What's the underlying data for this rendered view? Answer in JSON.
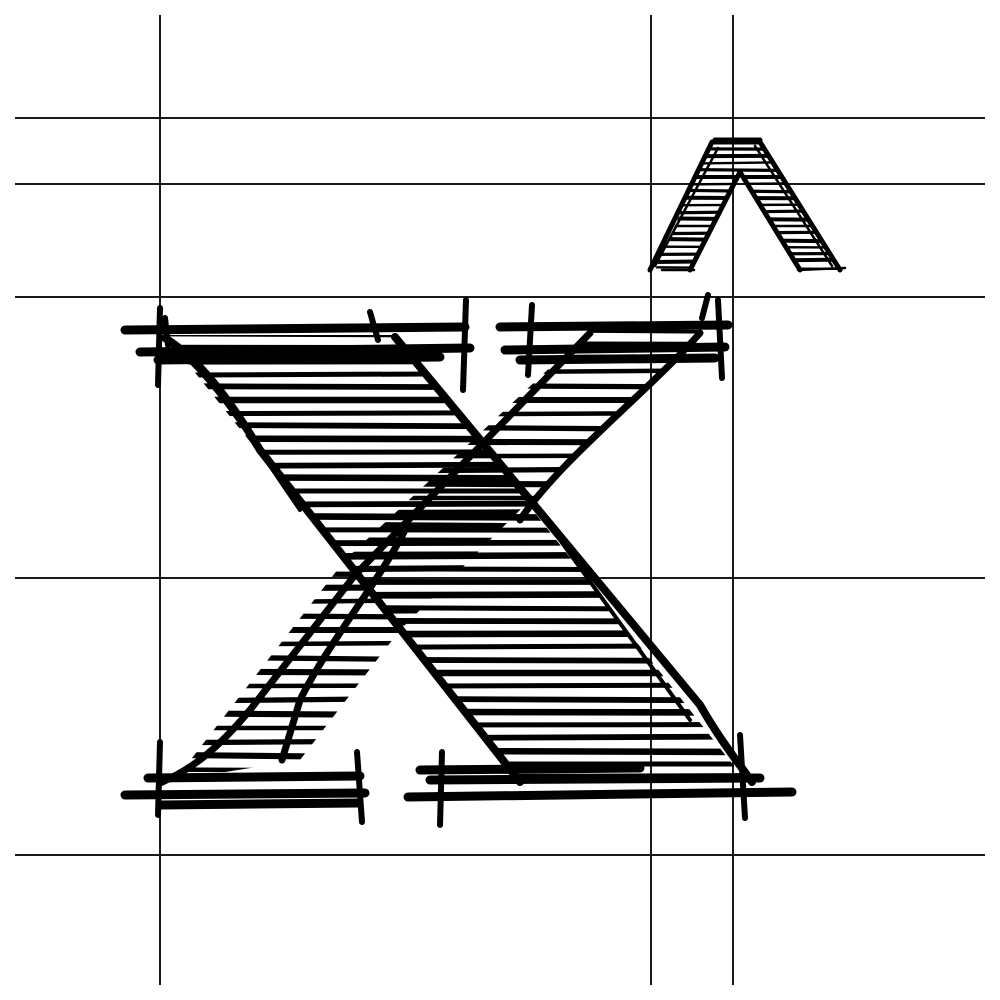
{
  "drawing": {
    "subject": "x-hat-sketch",
    "glyph": "x",
    "accent": "^",
    "colors": {
      "ink": "#000000",
      "paper": "#ffffff",
      "grid": "#1a1a1a"
    }
  }
}
